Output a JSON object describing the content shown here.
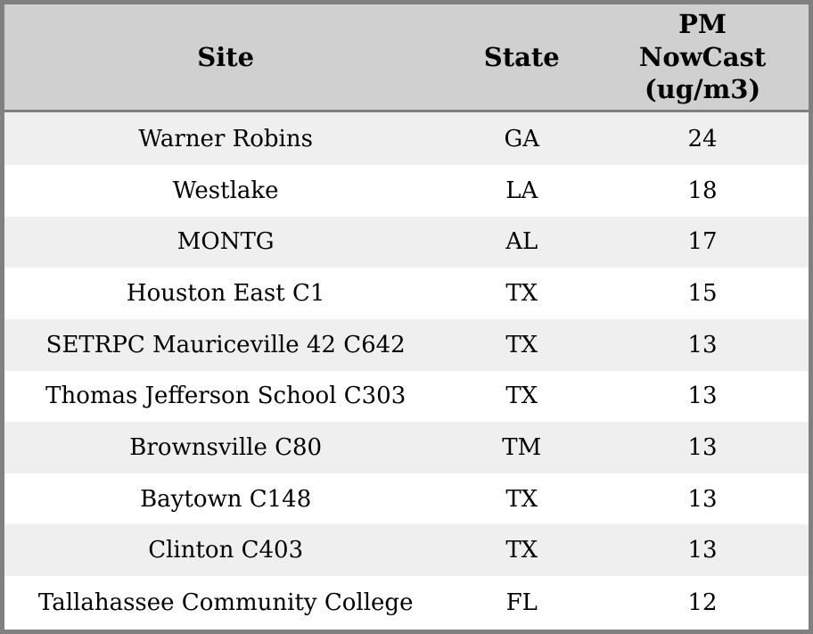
{
  "chart_data": {
    "type": "table",
    "title": "",
    "columns": [
      {
        "key": "site",
        "label": "Site"
      },
      {
        "key": "state",
        "label": "State"
      },
      {
        "key": "pm",
        "label": "PM\nNowCast\n(ug/m3)"
      }
    ],
    "rows": [
      {
        "site": "Warner Robins",
        "state": "GA",
        "pm": "24"
      },
      {
        "site": "Westlake",
        "state": "LA",
        "pm": "18"
      },
      {
        "site": "MONTG",
        "state": "AL",
        "pm": "17"
      },
      {
        "site": "Houston East C1",
        "state": "TX",
        "pm": "15"
      },
      {
        "site": "SETRPC Mauriceville 42 C642",
        "state": "TX",
        "pm": "13"
      },
      {
        "site": "Thomas Jefferson School C303",
        "state": "TX",
        "pm": "13"
      },
      {
        "site": "Brownsville C80",
        "state": "TM",
        "pm": "13"
      },
      {
        "site": "Baytown C148",
        "state": "TX",
        "pm": "13"
      },
      {
        "site": "Clinton C403",
        "state": "TX",
        "pm": "13"
      },
      {
        "site": "Tallahassee Community College",
        "state": "FL",
        "pm": "12"
      }
    ],
    "colors": {
      "header_bg": "#d0d0d0",
      "border": "#808080",
      "row_alt_bg": "#efefef",
      "row_bg": "#ffffff",
      "text": "#000000"
    }
  }
}
